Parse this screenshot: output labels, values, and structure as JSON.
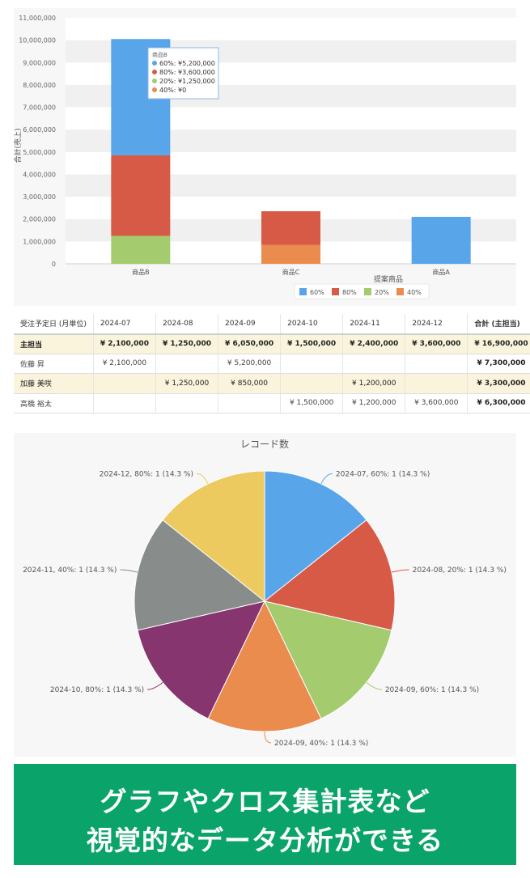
{
  "bar_chart": {
    "y_axis_label": "合計(売上)",
    "x_axis_label": "提案商品",
    "tooltip": {
      "title": "商品B",
      "rows": [
        {
          "text": "60%: ¥5,200,000",
          "color": "#58a5ea"
        },
        {
          "text": "80%: ¥3,600,000",
          "color": "#d75a46"
        },
        {
          "text": "20%: ¥1,250,000",
          "color": "#a4cb6e"
        },
        {
          "text": "40%: ¥0",
          "color": "#ea8c4e"
        }
      ]
    }
  },
  "table": {
    "headers": [
      "受注予定日 (月単位)",
      "2024-07",
      "2024-08",
      "2024-09",
      "2024-10",
      "2024-11",
      "2024-12",
      "合計 (主担当)"
    ],
    "rows": [
      {
        "name": "主担当",
        "cells": [
          "¥ 2,100,000",
          "¥ 1,250,000",
          "¥ 6,050,000",
          "¥ 1,500,000",
          "¥ 2,400,000",
          "¥ 3,600,000"
        ],
        "total": "¥ 16,900,000",
        "style": "sub"
      },
      {
        "name": "佐藤 昇",
        "cells": [
          "¥ 2,100,000",
          "",
          "¥ 5,200,000",
          "",
          "",
          ""
        ],
        "total": "¥ 7,300,000",
        "style": "plain"
      },
      {
        "name": "加藤 美咲",
        "cells": [
          "",
          "¥ 1,250,000",
          "¥ 850,000",
          "",
          "¥ 1,200,000",
          ""
        ],
        "total": "¥ 3,300,000",
        "style": "sub2"
      },
      {
        "name": "高橋 裕太",
        "cells": [
          "",
          "",
          "",
          "¥ 1,500,000",
          "¥ 1,200,000",
          "¥ 3,600,000"
        ],
        "total": "¥ 6,300,000",
        "style": "plain"
      }
    ]
  },
  "banner": {
    "line1": "グラフやクロス集計表など",
    "line2": "視覚的なデータ分析ができる"
  },
  "chart_data": [
    {
      "type": "bar",
      "stacked": true,
      "categories": [
        "商品B",
        "商品C",
        "商品A"
      ],
      "series": [
        {
          "name": "60%",
          "color": "#58a5ea",
          "values": [
            5200000,
            0,
            2100000
          ]
        },
        {
          "name": "80%",
          "color": "#d75a46",
          "values": [
            3600000,
            1500000,
            0
          ]
        },
        {
          "name": "20%",
          "color": "#a4cb6e",
          "values": [
            1250000,
            0,
            0
          ]
        },
        {
          "name": "40%",
          "color": "#ea8c4e",
          "values": [
            0,
            850000,
            0
          ]
        }
      ],
      "ylabel": "合計(売上)",
      "xlabel": "提案商品",
      "ylim": [
        0,
        11000000
      ],
      "yticks": [
        "0",
        "1,000,000",
        "2,000,000",
        "3,000,000",
        "4,000,000",
        "5,000,000",
        "6,000,000",
        "7,000,000",
        "8,000,000",
        "9,000,000",
        "10,000,000",
        "11,000,000"
      ],
      "grid": true,
      "legend_position": "bottom"
    },
    {
      "type": "pie",
      "title": "レコード数",
      "slices": [
        {
          "label": "2024-07, 60%: 1 (14.3 %)",
          "value": 1,
          "color": "#58a5ea"
        },
        {
          "label": "2024-08, 20%: 1 (14.3 %)",
          "value": 1,
          "color": "#d75a46"
        },
        {
          "label": "2024-09, 60%: 1 (14.3 %)",
          "value": 1,
          "color": "#a4cb6e"
        },
        {
          "label": "2024-09, 40%: 1 (14.3 %)",
          "value": 1,
          "color": "#ea8c4e"
        },
        {
          "label": "2024-10, 80%: 1 (14.3 %)",
          "value": 1,
          "color": "#86356f"
        },
        {
          "label": "2024-11, 40%: 1 (14.3 %)",
          "value": 1,
          "color": "#888d8c"
        },
        {
          "label": "2024-12, 80%: 1 (14.3 %)",
          "value": 1,
          "color": "#ecca5f"
        }
      ]
    }
  ]
}
